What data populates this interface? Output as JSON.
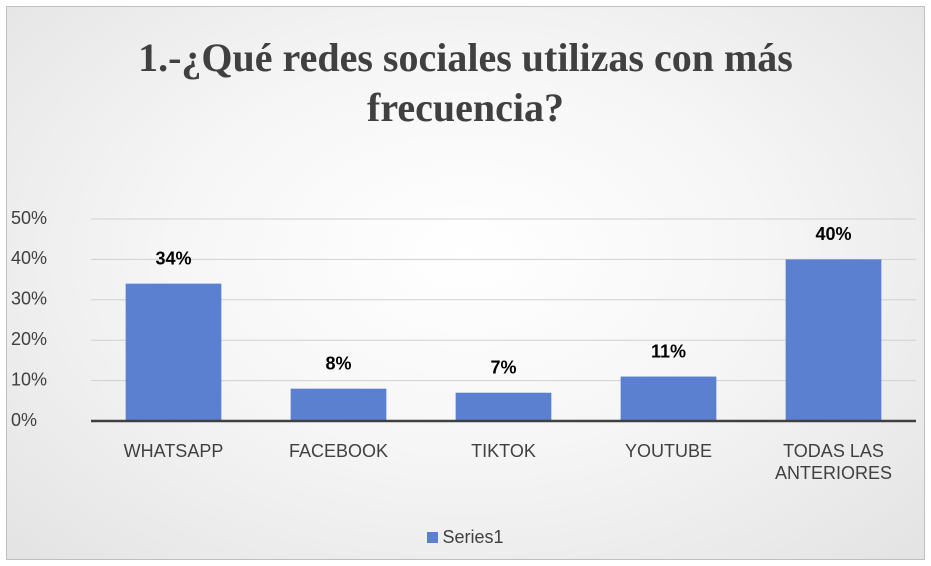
{
  "chart_data": {
    "type": "bar",
    "title": "1.-¿Qué redes sociales utilizas con más frecuencia?",
    "categories": [
      "WHATSAPP",
      "FACEBOOK",
      "TIKTOK",
      "YOUTUBE",
      "TODAS LAS ANTERIORES"
    ],
    "series": [
      {
        "name": "Series1",
        "color": "#5b80cf",
        "values": [
          34,
          8,
          7,
          11,
          40
        ],
        "value_labels": [
          "34%",
          "8%",
          "7%",
          "11%",
          "40%"
        ]
      }
    ],
    "ylim": [
      0,
      50
    ],
    "yticks": [
      {
        "value": 0,
        "label": "0%"
      },
      {
        "value": 10,
        "label": "10%"
      },
      {
        "value": 20,
        "label": "20%"
      },
      {
        "value": 30,
        "label": "30%"
      },
      {
        "value": 40,
        "label": "40%"
      },
      {
        "value": 50,
        "label": "50%"
      }
    ],
    "grid": true,
    "legend": "bottom"
  }
}
